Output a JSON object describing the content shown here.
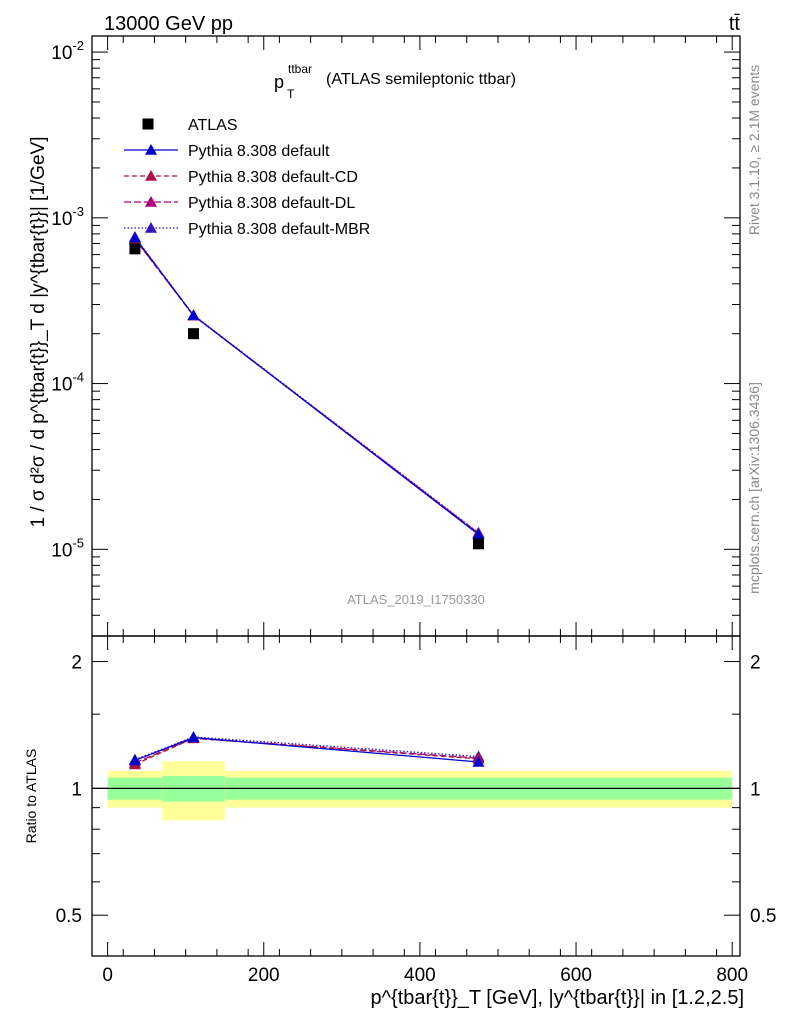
{
  "header": {
    "energy_label": "13000 GeV pp",
    "process_label": "tt̄",
    "plot_title_main": "p",
    "plot_title_sup": "ttbar",
    "plot_title_sub": "T",
    "plot_title_rest": "(ATLAS semileptonic ttbar)",
    "analysis_id": "ATLAS_2019_I1750330"
  },
  "side_labels": {
    "rivet": "Rivet 3.1.10, ≥ 2.1M events",
    "mcplots": "mcplots.cern.ch [arXiv:1306.3436]"
  },
  "axes": {
    "ylabel_main": "1 / σ d²σ / d p^{tbar{t}}_T d |y^{tbar{t}}| [1/GeV]",
    "ylabel_ratio": "Ratio to ATLAS",
    "xlabel": "p^{tbar{t}}_T [GeV], |y^{tbar{t}}| in [1.2,2.5]",
    "x_ticks": [
      "0",
      "200",
      "400",
      "600",
      "800"
    ],
    "main_y_ticks": [
      "10^{-5}",
      "10^{-4}",
      "10^{-3}",
      "10^{-2}"
    ],
    "ratio_y_ticks": [
      "0.5",
      "1",
      "2"
    ]
  },
  "colors": {
    "data": "#000000",
    "default": "#0000cc",
    "cd": "#aa1144",
    "dl": "#aa0077",
    "mbr": "#3311bb",
    "band_inner": "#99ff99",
    "band_outer": "#ffff99"
  },
  "chart_data": {
    "type": "line",
    "x_scale": "linear",
    "main_y_scale": "log",
    "xlim": [
      -20,
      810
    ],
    "main_ylim": [
      3e-06,
      0.0125
    ],
    "ratio_ylim": [
      0.4,
      2.3
    ],
    "ratio_y_scale": "log",
    "legend_position": "top-left",
    "bins": [
      [
        0,
        70
      ],
      [
        70,
        150
      ],
      [
        150,
        800
      ]
    ],
    "x": [
      35,
      110,
      475
    ],
    "series": [
      {
        "name": "ATLAS",
        "style": "data",
        "marker": "square",
        "values": [
          0.00065,
          0.0002,
          1.08e-05
        ],
        "ratio_band_inner": [
          0.06,
          0.07,
          0.06
        ],
        "ratio_band_outer": [
          0.1,
          0.16,
          0.1
        ]
      },
      {
        "name": "Pythia 8.308 default",
        "style": "solid",
        "marker": "triangle",
        "values": [
          0.00076,
          0.000258,
          1.23e-05
        ],
        "ratio": [
          1.165,
          1.32,
          1.155
        ]
      },
      {
        "name": "Pythia 8.308 default-CD",
        "style": "dashed",
        "marker": "triangle",
        "values": [
          0.000745,
          0.000257,
          1.25e-05
        ],
        "ratio": [
          1.14,
          1.315,
          1.175
        ]
      },
      {
        "name": "Pythia 8.308 default-DL",
        "style": "dashed",
        "marker": "triangle",
        "values": [
          0.00075,
          0.000257,
          1.25e-05
        ],
        "ratio": [
          1.15,
          1.315,
          1.18
        ]
      },
      {
        "name": "Pythia 8.308 default-MBR",
        "style": "dotted",
        "marker": "triangle",
        "values": [
          0.000765,
          0.000259,
          1.26e-05
        ],
        "ratio": [
          1.17,
          1.325,
          1.19
        ]
      }
    ]
  }
}
